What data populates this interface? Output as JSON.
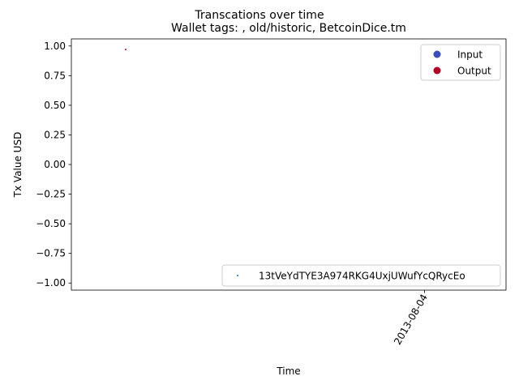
{
  "chart_data": {
    "type": "scatter",
    "suptitle": "Transcations over time",
    "title": "Wallet tags: , old/historic, BetcoinDice.tm",
    "xlabel": "Time",
    "ylabel": "Tx Value USD",
    "ylim": [
      -1.06,
      1.06
    ],
    "y_ticks": [
      1.0,
      0.75,
      0.5,
      0.25,
      0.0,
      -0.25,
      -0.5,
      -0.75,
      -1.0
    ],
    "y_tick_labels": [
      "1.00",
      "0.75",
      "0.50",
      "0.25",
      "0.00",
      "−0.25",
      "−0.50",
      "−0.75",
      "−1.00"
    ],
    "x_ticks": [
      {
        "value": "2013-08-04",
        "label": "2013-08-04"
      }
    ],
    "grid": false,
    "colors": {
      "input": "#3b4cc0",
      "output": "#b40426",
      "wallet": "#1f77b4"
    },
    "series": [
      {
        "name": "Input",
        "color": "#3b4cc0",
        "points": []
      },
      {
        "name": "Output",
        "color": "#b40426",
        "points": [
          {
            "x": "2013-07-24",
            "y": 0.97
          }
        ]
      },
      {
        "name": "13tVeYdTYE3A974RKG4UxjUWufYcQRycEo",
        "color": "#1f77b4",
        "points": []
      }
    ],
    "legends": [
      {
        "position": "top-right",
        "entries": [
          {
            "label": "Input",
            "color": "#3b4cc0",
            "marker": "circle"
          },
          {
            "label": "Output",
            "color": "#b40426",
            "marker": "circle"
          }
        ]
      },
      {
        "position": "lower-right",
        "entries": [
          {
            "label": "13tVeYdTYE3A974RKG4UxjUWufYcQRycEo",
            "color": "#1f77b4",
            "marker": "point"
          }
        ]
      }
    ]
  }
}
